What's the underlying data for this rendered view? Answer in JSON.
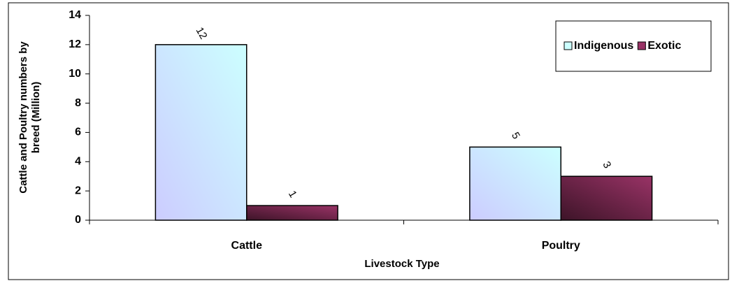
{
  "chart_data": {
    "type": "bar",
    "ylabel": [
      "Cattle and Poultry numbers by",
      "breed (Million)"
    ],
    "xlabel": "Livestock Type",
    "categories": [
      "Cattle",
      "Poultry"
    ],
    "series": [
      {
        "name": "Indigenous",
        "color": "#ccffff",
        "values": [
          12,
          5
        ]
      },
      {
        "name": "Exotic",
        "color": "#993366",
        "values": [
          1,
          3
        ]
      }
    ],
    "ylim": [
      0,
      14
    ],
    "yticks": [
      0,
      2,
      4,
      6,
      8,
      10,
      12,
      14
    ],
    "legend": "upper right"
  }
}
